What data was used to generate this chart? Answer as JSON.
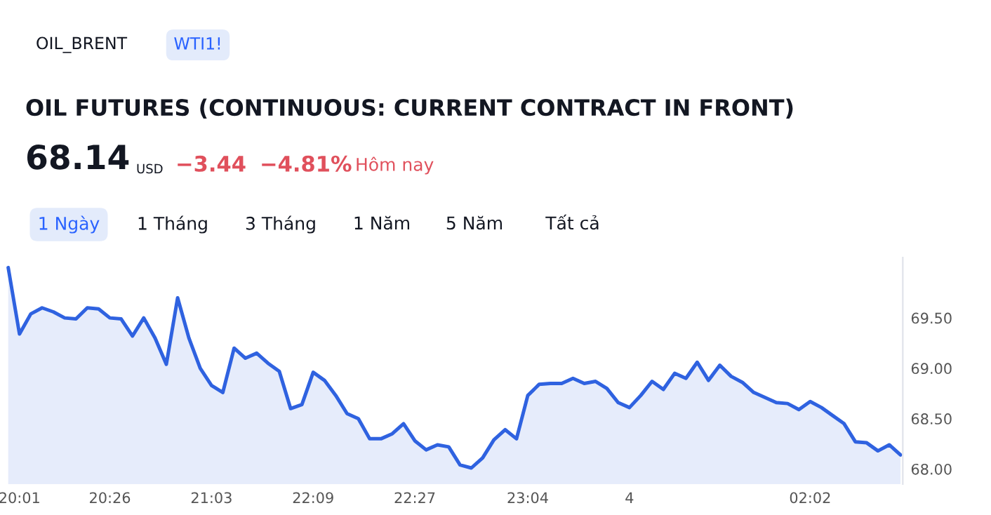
{
  "chart_data": {
    "type": "area",
    "title": "OIL FUTURES (CONTINUOUS: CURRENT CONTRACT IN FRONT)",
    "annotations": [
      "OIL_BRENT",
      "WTI1!",
      "68.14",
      "USD",
      "−3.44",
      "−4.81%",
      "Hôm nay",
      "1 Ngày",
      "1 Tháng",
      "3 Tháng",
      "1 Năm",
      "5 Năm",
      "Tất cả"
    ],
    "categories": [
      null,
      "20:01",
      null,
      null,
      null,
      null,
      null,
      null,
      null,
      "20:26",
      null,
      null,
      null,
      null,
      null,
      null,
      null,
      null,
      "21:03",
      null,
      null,
      null,
      null,
      null,
      null,
      null,
      null,
      "22:09",
      null,
      null,
      null,
      null,
      null,
      null,
      null,
      null,
      "22:27",
      null,
      null,
      null,
      null,
      null,
      null,
      null,
      null,
      null,
      "23:04",
      null,
      null,
      null,
      null,
      null,
      null,
      null,
      null,
      "4",
      null,
      null,
      null,
      null,
      null,
      null,
      null,
      null,
      null,
      null,
      null,
      null,
      null,
      null,
      null,
      "02:02",
      null,
      null,
      null,
      null,
      null,
      null,
      null,
      null
    ],
    "series": [
      {
        "color": "#2f62e0",
        "values": [
          70.0,
          69.34,
          69.54,
          69.6,
          69.56,
          69.5,
          69.49,
          69.6,
          69.59,
          69.5,
          69.49,
          69.32,
          69.5,
          69.3,
          69.04,
          69.7,
          69.3,
          69.0,
          68.83,
          68.76,
          69.2,
          69.1,
          69.15,
          69.05,
          68.97,
          68.6,
          68.64,
          68.96,
          68.88,
          68.73,
          68.55,
          68.5,
          68.3,
          68.3,
          68.35,
          68.45,
          68.28,
          68.19,
          68.24,
          68.22,
          68.04,
          68.01,
          68.11,
          68.29,
          68.39,
          68.3,
          68.73,
          68.84,
          68.85,
          68.85,
          68.9,
          68.85,
          68.87,
          68.8,
          68.66,
          68.61,
          68.73,
          68.87,
          68.79,
          68.95,
          68.9,
          69.06,
          68.88,
          69.03,
          68.92,
          68.86,
          68.76,
          68.71,
          68.66,
          68.65,
          68.59,
          68.67,
          68.61,
          68.53,
          68.45,
          68.27,
          68.26,
          68.18,
          68.24,
          68.14
        ]
      }
    ],
    "ylim": [
      67.85,
      70.1
    ],
    "yticks": [
      {
        "value": 68,
        "label": "68.00"
      },
      {
        "value": 68.5,
        "label": "68.50"
      },
      {
        "value": 69,
        "label": "69.00"
      },
      {
        "value": 69.5,
        "label": "69.50"
      }
    ],
    "grid": false,
    "legend": false
  }
}
